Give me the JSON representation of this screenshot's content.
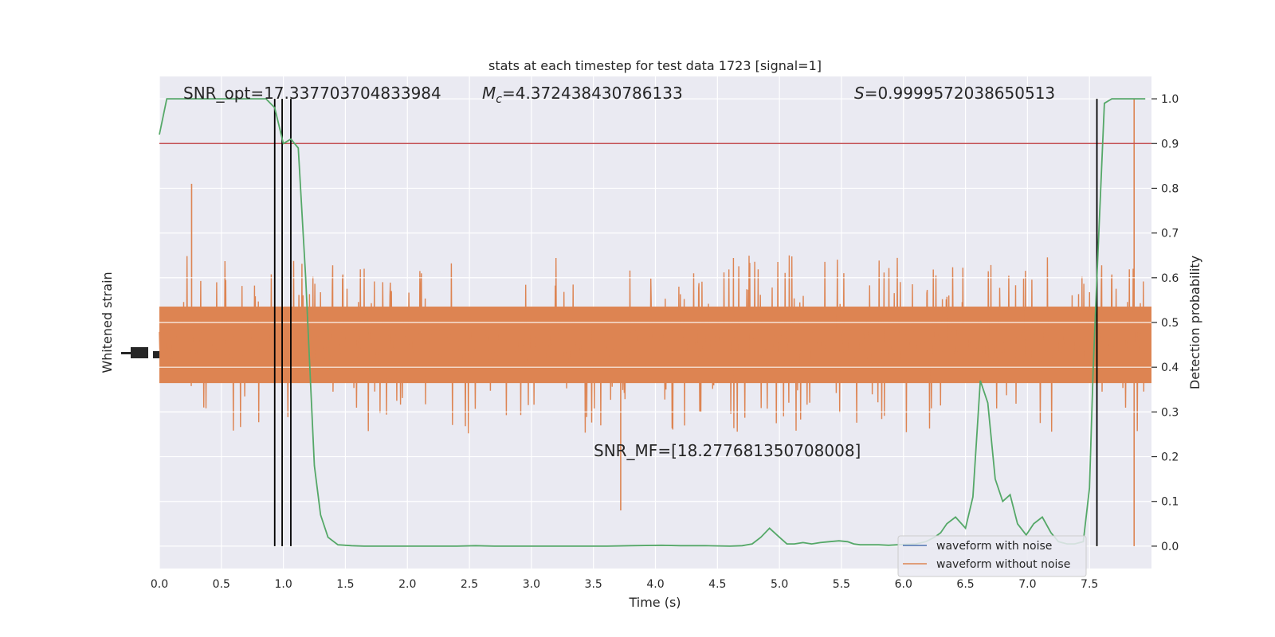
{
  "chart_data": {
    "type": "line",
    "title": "stats at each timestep for test data 1723 [signal=1]",
    "xlabel": "Time (s)",
    "ylabel_left": "Whitened strain",
    "ylabel_right": "Detection probability",
    "xlim": [
      0.0,
      8.0
    ],
    "ylim_right": [
      -0.05,
      1.05
    ],
    "x_ticks": [
      "0.0",
      "0.5",
      "1.0",
      "1.5",
      "2.0",
      "2.5",
      "3.0",
      "3.5",
      "4.0",
      "4.5",
      "5.0",
      "5.5",
      "6.0",
      "6.5",
      "7.0",
      "7.5"
    ],
    "y_ticks_right": [
      "0.0",
      "0.1",
      "0.2",
      "0.3",
      "0.4",
      "0.5",
      "0.6",
      "0.7",
      "0.8",
      "0.9",
      "1.0"
    ],
    "annotations": {
      "snr_opt": "SNR_opt=17.337703704833984",
      "mc_symbol": "M",
      "mc_sub": "c",
      "mc_value": "=4.372438430786133",
      "s_symbol": "S",
      "s_value": "=0.9999572038650513",
      "snr_mf": "SNR_MF=[18.277681350708008]"
    },
    "threshold": 0.9,
    "vlines_x": [
      0.93,
      0.99,
      1.06,
      7.56
    ],
    "legend": {
      "placement": "lower-right",
      "entries": [
        "waveform with noise",
        "waveform without noise"
      ]
    },
    "series": [
      {
        "name": "waveform without noise",
        "kind": "strain",
        "color": "#dd8452",
        "band_center": 0.45,
        "band_half_width": 0.09,
        "peak_half_width": 0.2,
        "spikes": [
          [
            0.26,
            0.81
          ],
          [
            3.72,
            0.08
          ],
          [
            7.86,
            1.0
          ],
          [
            7.86,
            -0.0
          ]
        ]
      },
      {
        "name": "detection probability",
        "kind": "probability",
        "color": "#55a868",
        "x": [
          0.0,
          0.06,
          0.12,
          0.2,
          0.3,
          0.4,
          0.5,
          0.6,
          0.7,
          0.8,
          0.86,
          0.93,
          1.0,
          1.06,
          1.12,
          1.18,
          1.25,
          1.3,
          1.36,
          1.44,
          1.55,
          1.65,
          1.8,
          2.0,
          2.2,
          2.4,
          2.55,
          2.7,
          3.0,
          3.3,
          3.6,
          3.8,
          4.05,
          4.2,
          4.4,
          4.6,
          4.7,
          4.78,
          4.85,
          4.92,
          5.0,
          5.06,
          5.12,
          5.19,
          5.26,
          5.33,
          5.4,
          5.48,
          5.55,
          5.6,
          5.65,
          5.72,
          5.8,
          5.88,
          5.95,
          6.02,
          6.1,
          6.18,
          6.25,
          6.3,
          6.35,
          6.42,
          6.5,
          6.56,
          6.62,
          6.68,
          6.74,
          6.8,
          6.86,
          6.92,
          6.99,
          7.05,
          7.12,
          7.19,
          7.25,
          7.32,
          7.38,
          7.45,
          7.5,
          7.53,
          7.56,
          7.62,
          7.68,
          7.75,
          7.85,
          7.95
        ],
        "values": [
          0.92,
          1.0,
          1.0,
          1.0,
          1.0,
          1.0,
          1.0,
          1.0,
          1.0,
          1.0,
          1.0,
          0.98,
          0.9,
          0.91,
          0.89,
          0.6,
          0.18,
          0.07,
          0.02,
          0.003,
          0.001,
          0.0,
          0.0,
          0.0,
          0.0,
          0.0,
          0.001,
          0.0,
          0.0,
          0.0,
          0.0,
          0.001,
          0.002,
          0.001,
          0.001,
          0.0,
          0.001,
          0.005,
          0.02,
          0.04,
          0.02,
          0.005,
          0.005,
          0.008,
          0.005,
          0.008,
          0.01,
          0.012,
          0.01,
          0.005,
          0.003,
          0.003,
          0.003,
          0.002,
          0.003,
          0.004,
          0.005,
          0.01,
          0.02,
          0.03,
          0.05,
          0.065,
          0.04,
          0.11,
          0.37,
          0.32,
          0.15,
          0.1,
          0.115,
          0.05,
          0.025,
          0.05,
          0.065,
          0.03,
          0.01,
          0.005,
          0.005,
          0.01,
          0.13,
          0.4,
          0.6,
          0.99,
          1.0,
          1.0,
          1.0,
          1.0
        ]
      }
    ]
  }
}
